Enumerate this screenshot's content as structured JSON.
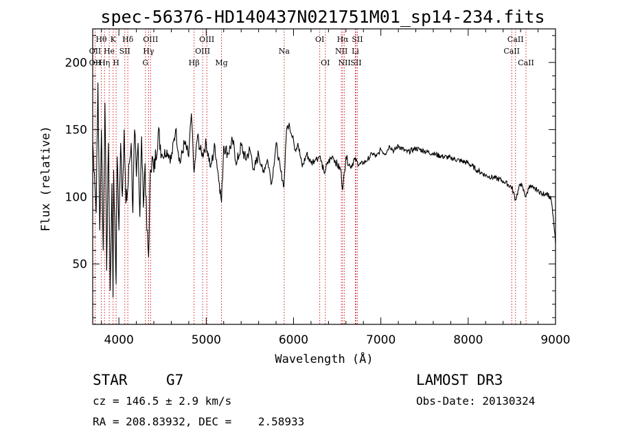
{
  "chart_data": {
    "type": "line",
    "title": "spec-56376-HD140437N021751M01_sp14-234.fits",
    "xlabel": "Wavelength (Å)",
    "ylabel": "Flux (relative)",
    "xlim": [
      3700,
      9000
    ],
    "ylim": [
      5,
      225
    ],
    "x_ticks": [
      4000,
      5000,
      6000,
      7000,
      8000,
      9000
    ],
    "y_ticks": [
      50,
      100,
      150,
      200
    ],
    "grid": false,
    "legend": "none",
    "series": [
      {
        "name": "spectrum",
        "x": [
          3700,
          3720,
          3740,
          3760,
          3780,
          3800,
          3820,
          3840,
          3860,
          3880,
          3900,
          3920,
          3933,
          3940,
          3960,
          3968,
          3980,
          4000,
          4020,
          4040,
          4060,
          4080,
          4101,
          4120,
          4140,
          4160,
          4180,
          4200,
          4220,
          4240,
          4260,
          4280,
          4300,
          4320,
          4340,
          4360,
          4380,
          4400,
          4450,
          4500,
          4550,
          4600,
          4650,
          4700,
          4750,
          4800,
          4830,
          4861,
          4900,
          4950,
          5000,
          5050,
          5100,
          5150,
          5175,
          5200,
          5250,
          5300,
          5350,
          5400,
          5450,
          5500,
          5550,
          5600,
          5650,
          5700,
          5750,
          5800,
          5850,
          5890,
          5920,
          5950,
          5980,
          6000,
          6020,
          6050,
          6100,
          6150,
          6200,
          6250,
          6300,
          6350,
          6400,
          6450,
          6500,
          6540,
          6563,
          6600,
          6650,
          6700,
          6750,
          6800,
          6850,
          6900,
          6950,
          7000,
          7050,
          7100,
          7150,
          7200,
          7300,
          7400,
          7500,
          7600,
          7700,
          7800,
          7900,
          8000,
          8100,
          8200,
          8300,
          8400,
          8500,
          8542,
          8600,
          8662,
          8700,
          8750,
          8800,
          8850,
          8900,
          8950,
          8980,
          9000
        ],
        "y": [
          140,
          118,
          88,
          185,
          75,
          150,
          60,
          170,
          45,
          140,
          30,
          110,
          25,
          120,
          60,
          35,
          130,
          75,
          140,
          100,
          150,
          95,
          105,
          125,
          140,
          88,
          150,
          115,
          140,
          85,
          145,
          92,
          125,
          75,
          55,
          120,
          130,
          118,
          148,
          130,
          135,
          128,
          150,
          125,
          140,
          130,
          162,
          118,
          145,
          130,
          140,
          122,
          138,
          110,
          96,
          138,
          132,
          142,
          125,
          138,
          128,
          135,
          120,
          132,
          118,
          128,
          110,
          140,
          120,
          108,
          150,
          155,
          145,
          142,
          135,
          140,
          122,
          132,
          125,
          128,
          130,
          118,
          126,
          130,
          124,
          120,
          105,
          130,
          122,
          128,
          124,
          125,
          128,
          132,
          130,
          135,
          132,
          138,
          134,
          138,
          133,
          136,
          134,
          132,
          130,
          129,
          127,
          125,
          120,
          116,
          114,
          112,
          107,
          98,
          110,
          100,
          108,
          106,
          105,
          102,
          103,
          98,
          80,
          65
        ]
      }
    ],
    "line_markers": [
      {
        "label": "Hθ",
        "x": 3798,
        "row": 1
      },
      {
        "label": "K",
        "x": 3934,
        "row": 1
      },
      {
        "label": "Hδ",
        "x": 4102,
        "row": 1
      },
      {
        "label": "OIII",
        "x": 4363,
        "row": 1
      },
      {
        "label": "OIII",
        "x": 5007,
        "row": 1
      },
      {
        "label": "OI",
        "x": 6300,
        "row": 1
      },
      {
        "label": "Hα",
        "x": 6563,
        "row": 1
      },
      {
        "label": "SII",
        "x": 6731,
        "row": 1
      },
      {
        "label": "CaII",
        "x": 8542,
        "row": 1
      },
      {
        "label": "OII",
        "x": 3727,
        "row": 2
      },
      {
        "label": "He",
        "x": 3889,
        "row": 2
      },
      {
        "label": "SII",
        "x": 4068,
        "row": 2
      },
      {
        "label": "Hγ",
        "x": 4340,
        "row": 2
      },
      {
        "label": "OIII",
        "x": 4959,
        "row": 2
      },
      {
        "label": "Na",
        "x": 5893,
        "row": 2
      },
      {
        "label": "NII",
        "x": 6548,
        "row": 2
      },
      {
        "label": "Li",
        "x": 6708,
        "row": 2
      },
      {
        "label": "CaII",
        "x": 8498,
        "row": 2
      },
      {
        "label": "OII",
        "x": 3727,
        "row": 3
      },
      {
        "label": "Hη",
        "x": 3835,
        "row": 3
      },
      {
        "label": "H",
        "x": 3968,
        "row": 3
      },
      {
        "label": "G",
        "x": 4304,
        "row": 3
      },
      {
        "label": "Hβ",
        "x": 4861,
        "row": 3
      },
      {
        "label": "Mg",
        "x": 5175,
        "row": 3
      },
      {
        "label": "OI",
        "x": 6364,
        "row": 3
      },
      {
        "label": "NII",
        "x": 6583,
        "row": 3
      },
      {
        "label": "SII",
        "x": 6716,
        "row": 3
      },
      {
        "label": "CaII",
        "x": 8662,
        "row": 3
      }
    ]
  },
  "info": {
    "class": "STAR",
    "subclass": "G7",
    "survey": "LAMOST DR3",
    "cz": "cz = 146.5 ± 2.9 km/s",
    "obs_date": "Obs-Date: 20130324",
    "radec": "RA = 208.83932, DEC =    2.58933"
  },
  "colors": {
    "spectrum": "#000000",
    "marker": "#cc0000",
    "axes": "#000000"
  }
}
